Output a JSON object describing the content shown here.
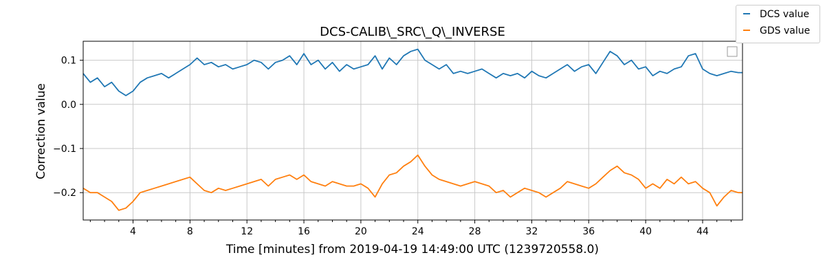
{
  "chart_data": {
    "type": "line",
    "title": "DCS-CALIB\\_SRC\\_Q\\_INVERSE",
    "xlabel": "Time [minutes] from 2019-04-19 14:49:00 UTC (1239720558.0)",
    "ylabel": "Correction value",
    "xlim": [
      0.5,
      46.8
    ],
    "ylim": [
      -0.262,
      0.143
    ],
    "xticks": [
      4,
      8,
      12,
      16,
      20,
      24,
      28,
      32,
      36,
      40,
      44
    ],
    "yticks": [
      0.1,
      0.0,
      -0.1,
      -0.2
    ],
    "ytick_labels": [
      "0.1",
      "0.0",
      "−0.1",
      "−0.2"
    ],
    "grid": true,
    "legend_position": "top-right outside",
    "x": [
      0.5,
      1.0,
      1.5,
      2.0,
      2.5,
      3.0,
      3.5,
      4.0,
      4.5,
      5.0,
      5.5,
      6.0,
      6.5,
      7.0,
      7.5,
      8.0,
      8.5,
      9.0,
      9.5,
      10.0,
      10.5,
      11.0,
      11.5,
      12.0,
      12.5,
      13.0,
      13.5,
      14.0,
      14.5,
      15.0,
      15.5,
      16.0,
      16.5,
      17.0,
      17.5,
      18.0,
      18.5,
      19.0,
      19.5,
      20.0,
      20.5,
      21.0,
      21.5,
      22.0,
      22.5,
      23.0,
      23.5,
      24.0,
      24.5,
      25.0,
      25.5,
      26.0,
      26.5,
      27.0,
      27.5,
      28.0,
      28.5,
      29.0,
      29.5,
      30.0,
      30.5,
      31.0,
      31.5,
      32.0,
      32.5,
      33.0,
      33.5,
      34.0,
      34.5,
      35.0,
      35.5,
      36.0,
      36.5,
      37.0,
      37.5,
      38.0,
      38.5,
      39.0,
      39.5,
      40.0,
      40.5,
      41.0,
      41.5,
      42.0,
      42.5,
      43.0,
      43.5,
      44.0,
      44.5,
      45.0,
      45.5,
      46.0,
      46.5,
      46.8
    ],
    "series": [
      {
        "name": "DCS value",
        "color": "#1f77b4",
        "values": [
          0.07,
          0.05,
          0.06,
          0.04,
          0.05,
          0.03,
          0.02,
          0.03,
          0.05,
          0.06,
          0.065,
          0.07,
          0.06,
          0.07,
          0.08,
          0.09,
          0.105,
          0.09,
          0.095,
          0.085,
          0.09,
          0.08,
          0.085,
          0.09,
          0.1,
          0.095,
          0.08,
          0.095,
          0.1,
          0.11,
          0.09,
          0.115,
          0.09,
          0.1,
          0.08,
          0.095,
          0.075,
          0.09,
          0.08,
          0.085,
          0.09,
          0.11,
          0.08,
          0.105,
          0.09,
          0.11,
          0.12,
          0.125,
          0.1,
          0.09,
          0.08,
          0.09,
          0.07,
          0.075,
          0.07,
          0.075,
          0.08,
          0.07,
          0.06,
          0.07,
          0.065,
          0.07,
          0.06,
          0.075,
          0.065,
          0.06,
          0.07,
          0.08,
          0.09,
          0.075,
          0.085,
          0.09,
          0.07,
          0.095,
          0.12,
          0.11,
          0.09,
          0.1,
          0.08,
          0.085,
          0.065,
          0.075,
          0.07,
          0.08,
          0.085,
          0.11,
          0.115,
          0.08,
          0.07,
          0.065,
          0.07,
          0.075,
          0.072,
          0.072
        ]
      },
      {
        "name": "GDS value",
        "color": "#ff7f0e",
        "values": [
          -0.19,
          -0.2,
          -0.2,
          -0.21,
          -0.22,
          -0.24,
          -0.235,
          -0.22,
          -0.2,
          -0.195,
          -0.19,
          -0.185,
          -0.18,
          -0.175,
          -0.17,
          -0.165,
          -0.18,
          -0.195,
          -0.2,
          -0.19,
          -0.195,
          -0.19,
          -0.185,
          -0.18,
          -0.175,
          -0.17,
          -0.185,
          -0.17,
          -0.165,
          -0.16,
          -0.17,
          -0.16,
          -0.175,
          -0.18,
          -0.185,
          -0.175,
          -0.18,
          -0.185,
          -0.185,
          -0.18,
          -0.19,
          -0.21,
          -0.18,
          -0.16,
          -0.155,
          -0.14,
          -0.13,
          -0.115,
          -0.14,
          -0.16,
          -0.17,
          -0.175,
          -0.18,
          -0.185,
          -0.18,
          -0.175,
          -0.18,
          -0.185,
          -0.2,
          -0.195,
          -0.21,
          -0.2,
          -0.19,
          -0.195,
          -0.2,
          -0.21,
          -0.2,
          -0.19,
          -0.175,
          -0.18,
          -0.185,
          -0.19,
          -0.18,
          -0.165,
          -0.15,
          -0.14,
          -0.155,
          -0.16,
          -0.17,
          -0.19,
          -0.18,
          -0.19,
          -0.17,
          -0.18,
          -0.165,
          -0.18,
          -0.175,
          -0.19,
          -0.2,
          -0.23,
          -0.21,
          -0.195,
          -0.2,
          -0.2
        ]
      }
    ]
  }
}
